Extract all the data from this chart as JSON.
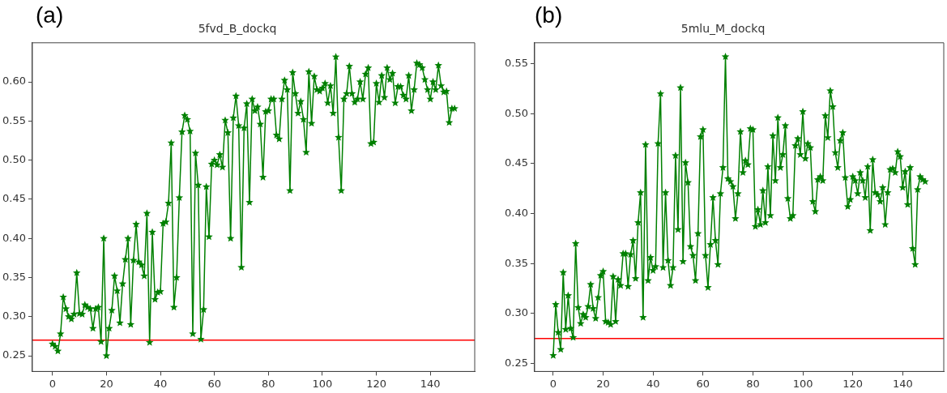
{
  "chart_data": [
    {
      "type": "line",
      "title": "5fvd_B_dockq",
      "annotations": [
        "(a)"
      ],
      "grid": false,
      "legend": false,
      "marker": "star",
      "line_style": "solid",
      "x": [
        0,
        1,
        2,
        3,
        4,
        5,
        6,
        7,
        8,
        9,
        10,
        11,
        12,
        13,
        14,
        15,
        16,
        17,
        18,
        19,
        20,
        21,
        22,
        23,
        24,
        25,
        26,
        27,
        28,
        29,
        30,
        31,
        32,
        33,
        34,
        35,
        36,
        37,
        38,
        39,
        40,
        41,
        42,
        43,
        44,
        45,
        46,
        47,
        48,
        49,
        50,
        51,
        52,
        53,
        54,
        55,
        56,
        57,
        58,
        59,
        60,
        61,
        62,
        63,
        64,
        65,
        66,
        67,
        68,
        69,
        70,
        71,
        72,
        73,
        74,
        75,
        76,
        77,
        78,
        79,
        80,
        81,
        82,
        83,
        84,
        85,
        86,
        87,
        88,
        89,
        90,
        91,
        92,
        93,
        94,
        95,
        96,
        97,
        98,
        99,
        100,
        101,
        102,
        103,
        104,
        105,
        106,
        107,
        108,
        109,
        110,
        111,
        112,
        113,
        114,
        115,
        116,
        117,
        118,
        119,
        120,
        121,
        122,
        123,
        124,
        125,
        126,
        127,
        128,
        129,
        130,
        131,
        132,
        133,
        134,
        135,
        136,
        137,
        138,
        139,
        140,
        141,
        142,
        143,
        144,
        145,
        146,
        147,
        148,
        149
      ],
      "series": [
        {
          "type": "line",
          "color": "#008000",
          "values": [
            0.265,
            0.262,
            0.256,
            0.278,
            0.325,
            0.31,
            0.3,
            0.297,
            0.303,
            0.356,
            0.304,
            0.303,
            0.315,
            0.312,
            0.31,
            0.285,
            0.31,
            0.312,
            0.268,
            0.4,
            0.25,
            0.285,
            0.308,
            0.352,
            0.333,
            0.292,
            0.342,
            0.373,
            0.4,
            0.29,
            0.372,
            0.418,
            0.37,
            0.366,
            0.352,
            0.432,
            0.267,
            0.408,
            0.322,
            0.331,
            0.332,
            0.419,
            0.421,
            0.445,
            0.522,
            0.312,
            0.35,
            0.452,
            0.536,
            0.557,
            0.552,
            0.537,
            0.278,
            0.509,
            0.468,
            0.271,
            0.309,
            0.466,
            0.402,
            0.495,
            0.5,
            0.494,
            0.507,
            0.491,
            0.551,
            0.535,
            0.4,
            0.554,
            0.582,
            0.544,
            0.363,
            0.541,
            0.572,
            0.446,
            0.578,
            0.563,
            0.568,
            0.546,
            0.478,
            0.562,
            0.563,
            0.578,
            0.578,
            0.532,
            0.527,
            0.578,
            0.602,
            0.59,
            0.461,
            0.612,
            0.585,
            0.56,
            0.575,
            0.552,
            0.51,
            0.613,
            0.547,
            0.607,
            0.59,
            0.588,
            0.592,
            0.598,
            0.573,
            0.595,
            0.56,
            0.632,
            0.529,
            0.461,
            0.578,
            0.585,
            0.62,
            0.585,
            0.574,
            0.578,
            0.6,
            0.578,
            0.61,
            0.618,
            0.521,
            0.523,
            0.598,
            0.574,
            0.608,
            0.58,
            0.618,
            0.603,
            0.611,
            0.573,
            0.594,
            0.594,
            0.583,
            0.578,
            0.608,
            0.563,
            0.59,
            0.624,
            0.622,
            0.618,
            0.603,
            0.59,
            0.578,
            0.6,
            0.59,
            0.621,
            0.595,
            0.587,
            0.588,
            0.548,
            0.566,
            0.566
          ]
        }
      ],
      "ref_lines": [
        {
          "axis": "y",
          "value": 0.27,
          "color": "#ff0000"
        }
      ],
      "xlim": [
        -7.45,
        156.45
      ],
      "xticks": [
        0,
        20,
        40,
        60,
        80,
        100,
        120,
        140
      ],
      "ylim": [
        0.23,
        0.65
      ],
      "yticks": [
        0.25,
        {
          "value": 0.3,
          "label": "0.30"
        },
        0.35,
        {
          "value": 0.4,
          "label": "0.40"
        },
        0.45,
        {
          "value": 0.5,
          "label": "0.50"
        },
        0.55,
        {
          "value": 0.6,
          "label": "0.60"
        }
      ]
    },
    {
      "type": "line",
      "title": "5mlu_M_dockq",
      "annotations": [
        "(b)"
      ],
      "grid": false,
      "legend": false,
      "marker": "star",
      "line_style": "solid",
      "x": [
        0,
        1,
        2,
        3,
        4,
        5,
        6,
        7,
        8,
        9,
        10,
        11,
        12,
        13,
        14,
        15,
        16,
        17,
        18,
        19,
        20,
        21,
        22,
        23,
        24,
        25,
        26,
        27,
        28,
        29,
        30,
        31,
        32,
        33,
        34,
        35,
        36,
        37,
        38,
        39,
        40,
        41,
        42,
        43,
        44,
        45,
        46,
        47,
        48,
        49,
        50,
        51,
        52,
        53,
        54,
        55,
        56,
        57,
        58,
        59,
        60,
        61,
        62,
        63,
        64,
        65,
        66,
        67,
        68,
        69,
        70,
        71,
        72,
        73,
        74,
        75,
        76,
        77,
        78,
        79,
        80,
        81,
        82,
        83,
        84,
        85,
        86,
        87,
        88,
        89,
        90,
        91,
        92,
        93,
        94,
        95,
        96,
        97,
        98,
        99,
        100,
        101,
        102,
        103,
        104,
        105,
        106,
        107,
        108,
        109,
        110,
        111,
        112,
        113,
        114,
        115,
        116,
        117,
        118,
        119,
        120,
        121,
        122,
        123,
        124,
        125,
        126,
        127,
        128,
        129,
        130,
        131,
        132,
        133,
        134,
        135,
        136,
        137,
        138,
        139,
        140,
        141,
        142,
        143,
        144,
        145,
        146,
        147,
        148,
        149
      ],
      "series": [
        {
          "type": "line",
          "color": "#008000",
          "values": [
            0.258,
            0.309,
            0.281,
            0.264,
            0.341,
            0.284,
            0.318,
            0.285,
            0.276,
            0.37,
            0.306,
            0.29,
            0.299,
            0.296,
            0.307,
            0.329,
            0.305,
            0.295,
            0.316,
            0.338,
            0.342,
            0.292,
            0.291,
            0.289,
            0.337,
            0.292,
            0.334,
            0.328,
            0.36,
            0.36,
            0.327,
            0.359,
            0.373,
            0.335,
            0.391,
            0.421,
            0.296,
            0.469,
            0.333,
            0.356,
            0.343,
            0.347,
            0.47,
            0.52,
            0.346,
            0.421,
            0.353,
            0.328,
            0.346,
            0.458,
            0.384,
            0.526,
            0.352,
            0.451,
            0.431,
            0.367,
            0.358,
            0.333,
            0.38,
            0.477,
            0.484,
            0.358,
            0.326,
            0.369,
            0.416,
            0.373,
            0.349,
            0.42,
            0.446,
            0.557,
            0.435,
            0.432,
            0.427,
            0.395,
            0.42,
            0.482,
            0.441,
            0.453,
            0.449,
            0.485,
            0.484,
            0.387,
            0.404,
            0.389,
            0.423,
            0.391,
            0.447,
            0.398,
            0.478,
            0.433,
            0.496,
            0.446,
            0.459,
            0.488,
            0.415,
            0.395,
            0.398,
            0.468,
            0.475,
            0.459,
            0.502,
            0.455,
            0.47,
            0.466,
            0.412,
            0.402,
            0.434,
            0.437,
            0.433,
            0.498,
            0.476,
            0.523,
            0.507,
            0.461,
            0.446,
            0.473,
            0.481,
            0.436,
            0.407,
            0.414,
            0.437,
            0.433,
            0.42,
            0.441,
            0.433,
            0.416,
            0.447,
            0.383,
            0.454,
            0.421,
            0.419,
            0.412,
            0.426,
            0.389,
            0.421,
            0.444,
            0.445,
            0.441,
            0.462,
            0.457,
            0.426,
            0.442,
            0.409,
            0.446,
            0.365,
            0.349,
            0.424,
            0.437,
            0.434,
            0.432
          ]
        }
      ],
      "ref_lines": [
        {
          "axis": "y",
          "value": 0.275,
          "color": "#ff0000"
        }
      ],
      "xlim": [
        -7.45,
        156.45
      ],
      "xticks": [
        0,
        20,
        40,
        60,
        80,
        100,
        120,
        140
      ],
      "ylim": [
        0.242,
        0.571
      ],
      "yticks": [
        0.25,
        {
          "value": 0.3,
          "label": "0.30"
        },
        0.35,
        {
          "value": 0.4,
          "label": "0.40"
        },
        0.45,
        {
          "value": 0.5,
          "label": "0.50"
        },
        0.55
      ]
    }
  ]
}
